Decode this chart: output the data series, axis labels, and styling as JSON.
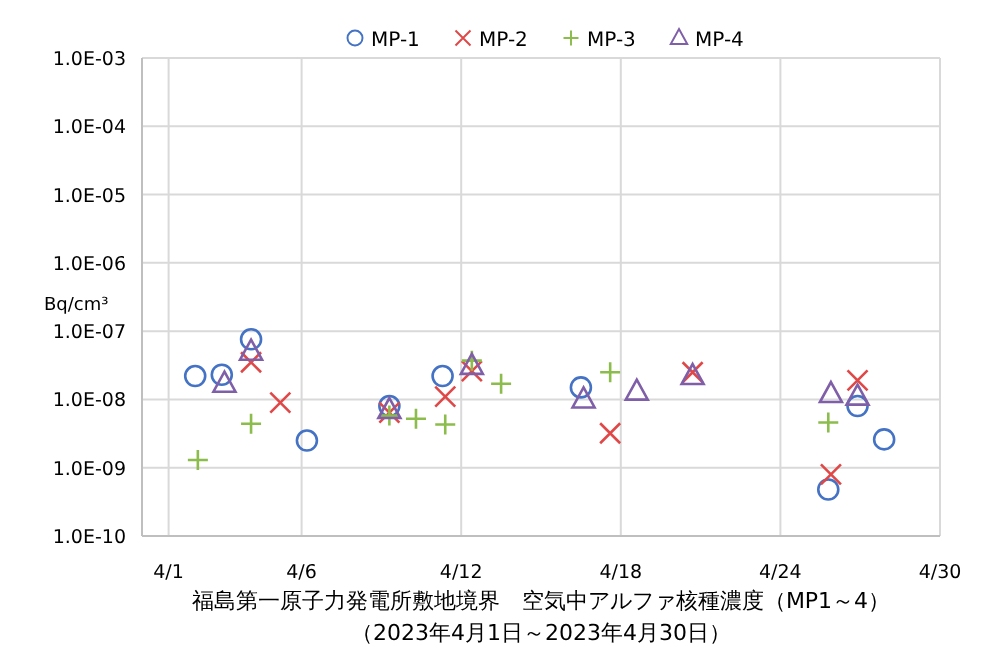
{
  "chart_data": {
    "type": "scatter",
    "title": "福島第一原子力発電所敷地境界　空気中アルファ核種濃度（MP1～4）",
    "subtitle": "（2023年4月1日～2023年4月30日）",
    "ylabel": "Bq/cm³",
    "log": "y",
    "grid": true,
    "legend": "top",
    "xlim": [
      "2023-03-31",
      "2023-04-30"
    ],
    "xticks": [
      {
        "value": "2023-04-01",
        "label": "4/1"
      },
      {
        "value": "2023-04-06",
        "label": "4/6"
      },
      {
        "value": "2023-04-12",
        "label": "4/12"
      },
      {
        "value": "2023-04-18",
        "label": "4/18"
      },
      {
        "value": "2023-04-24",
        "label": "4/24"
      },
      {
        "value": "2023-04-30",
        "label": "4/30"
      }
    ],
    "ylim": [
      1e-10,
      0.001
    ],
    "yticks": [
      {
        "value": 1e-10,
        "label": "1.0E-10"
      },
      {
        "value": 1e-09,
        "label": "1.0E-09"
      },
      {
        "value": 1e-08,
        "label": "1.0E-08"
      },
      {
        "value": 1e-07,
        "label": "1.0E-07"
      },
      {
        "value": 1e-06,
        "label": "1.0E-06"
      },
      {
        "value": 1e-05,
        "label": "1.0E-05"
      },
      {
        "value": 0.0001,
        "label": "1.0E-04"
      },
      {
        "value": 0.001,
        "label": "1.0E-03"
      }
    ],
    "series": [
      {
        "name": "MP-1",
        "color": "#4472c4",
        "marker": "circle",
        "x": [
          "2023-04-02T00:00",
          "2023-04-03T00:00",
          "2023-04-04T02:24",
          "2023-04-06T04:48",
          "2023-04-09T07:12",
          "2023-04-11T07:12",
          "2023-04-16T12:00",
          "2023-04-25T19:12",
          "2023-04-26T21:36",
          "2023-04-27T21:36"
        ],
        "values": [
          2.2e-08,
          2.3e-08,
          7.6e-08,
          2.5e-09,
          8e-09,
          2.2e-08,
          1.5e-08,
          4.8e-10,
          8e-09,
          2.6e-09
        ]
      },
      {
        "name": "MP-2",
        "color": "#e04848",
        "marker": "cross",
        "x": [
          "2023-04-04T02:24",
          "2023-04-05T04:48",
          "2023-04-09T07:12",
          "2023-04-11T09:36",
          "2023-04-12T09:36",
          "2023-04-17T14:24",
          "2023-04-20T16:48",
          "2023-04-25T21:36",
          "2023-04-26T21:36"
        ],
        "values": [
          3.5e-08,
          9e-09,
          6.4e-09,
          1.1e-08,
          2.6e-08,
          3.2e-09,
          2.5e-08,
          8e-10,
          1.9e-08
        ]
      },
      {
        "name": "MP-3",
        "color": "#8cbc4c",
        "marker": "plus",
        "x": [
          "2023-04-02T02:24",
          "2023-04-04T02:24",
          "2023-04-09T07:12",
          "2023-04-10T07:12",
          "2023-04-11T09:36",
          "2023-04-12T09:36",
          "2023-04-13T12:00",
          "2023-04-17T14:24",
          "2023-04-25T19:12"
        ],
        "values": [
          1.3e-09,
          4.4e-09,
          5.8e-09,
          5.2e-09,
          4.3e-09,
          3.7e-08,
          1.7e-08,
          2.5e-08,
          4.6e-09
        ]
      },
      {
        "name": "MP-4",
        "color": "#7f5fa8",
        "marker": "triangle",
        "x": [
          "2023-04-03T02:24",
          "2023-04-04T02:24",
          "2023-04-09T07:12",
          "2023-04-12T09:36",
          "2023-04-16T14:24",
          "2023-04-18T14:24",
          "2023-04-20T16:48",
          "2023-04-25T21:36",
          "2023-04-26T21:36"
        ],
        "values": [
          1.7e-08,
          5e-08,
          7e-09,
          3.1e-08,
          1e-08,
          1.3e-08,
          2.2e-08,
          1.2e-08,
          1.1e-08
        ]
      }
    ]
  }
}
